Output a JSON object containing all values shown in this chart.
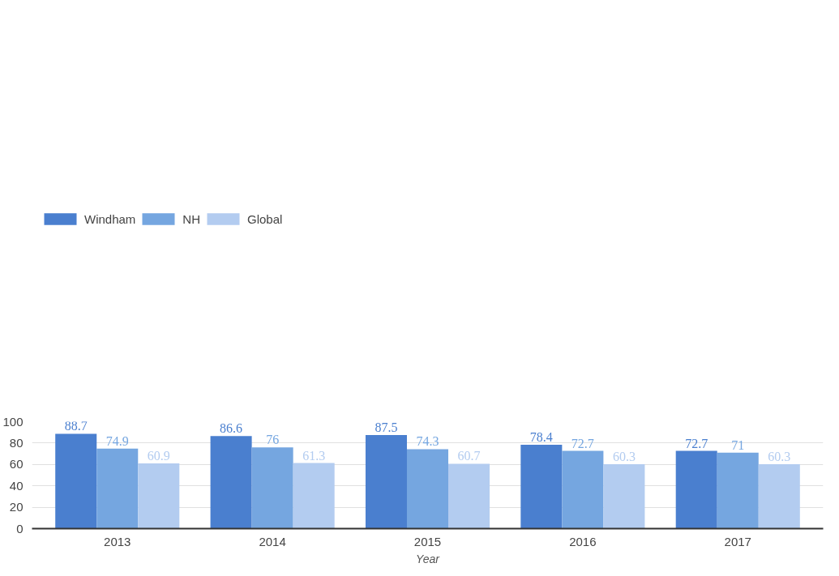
{
  "chart_data": {
    "type": "bar",
    "xlabel": "Year",
    "categories": [
      "2013",
      "2014",
      "2015",
      "2016",
      "2017"
    ],
    "series": [
      {
        "name": "Windham",
        "color": "#4a7fcf",
        "values": [
          88.7,
          86.6,
          87.5,
          78.4,
          72.7
        ]
      },
      {
        "name": "NH",
        "color": "#75a6e0",
        "values": [
          74.9,
          76,
          74.3,
          72.7,
          71
        ]
      },
      {
        "name": "Global",
        "color": "#b3ccf0",
        "values": [
          60.9,
          61.3,
          60.7,
          60.3,
          60.3
        ]
      }
    ],
    "ylim": [
      0,
      100
    ],
    "yticks": [
      0,
      20,
      40,
      60,
      80,
      100
    ],
    "grid": "y",
    "legend": "top left",
    "data_labels": true
  }
}
